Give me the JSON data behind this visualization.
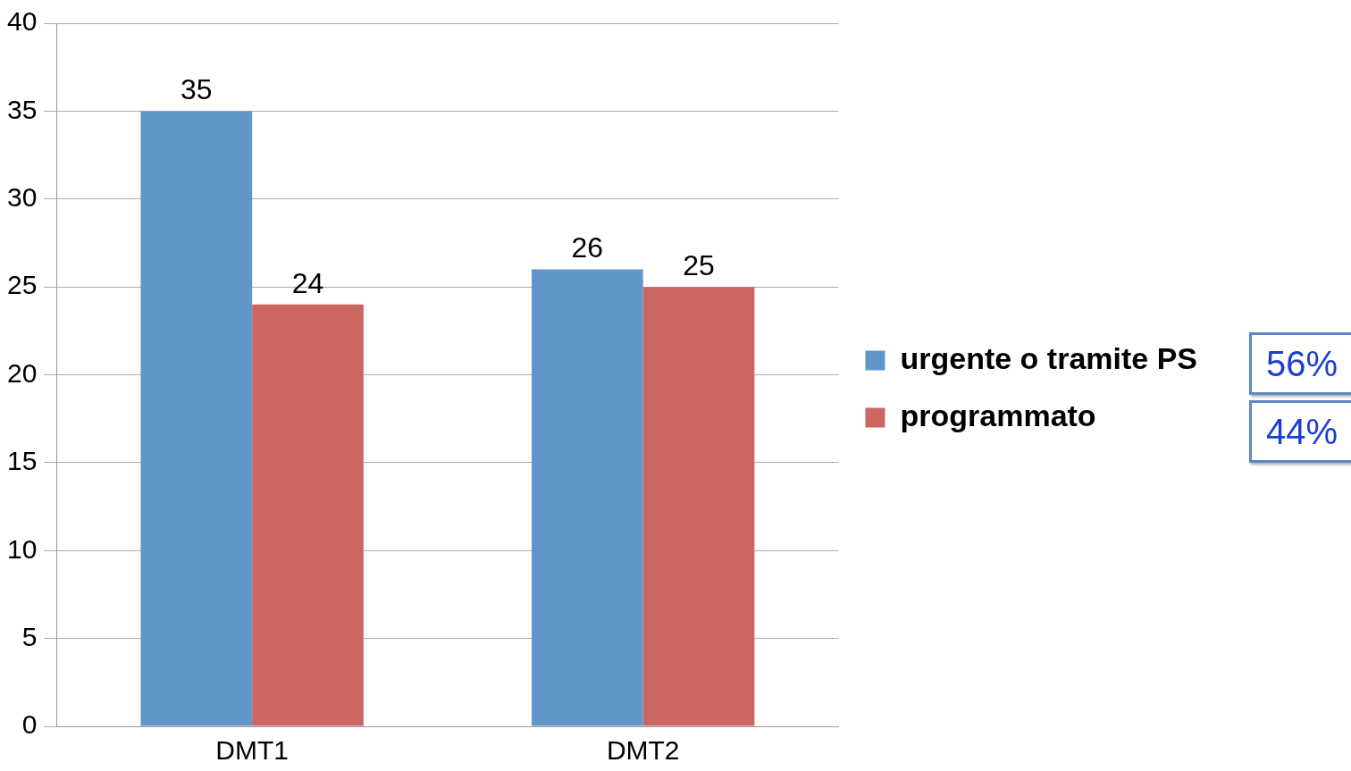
{
  "chart_data": {
    "type": "bar",
    "categories": [
      "DMT1",
      "DMT2"
    ],
    "series": [
      {
        "name": "urgente o tramite PS",
        "color": "#6096c9",
        "values": [
          35,
          26
        ]
      },
      {
        "name": "programmato",
        "color": "#cc6660",
        "values": [
          24,
          25
        ]
      }
    ],
    "ylim": [
      0,
      40
    ],
    "yticks": [
      0,
      5,
      10,
      15,
      20,
      25,
      30,
      35,
      40
    ],
    "grid": "y",
    "legend": "right",
    "data_labels": true,
    "annotations": [
      "56%",
      "44%"
    ]
  }
}
